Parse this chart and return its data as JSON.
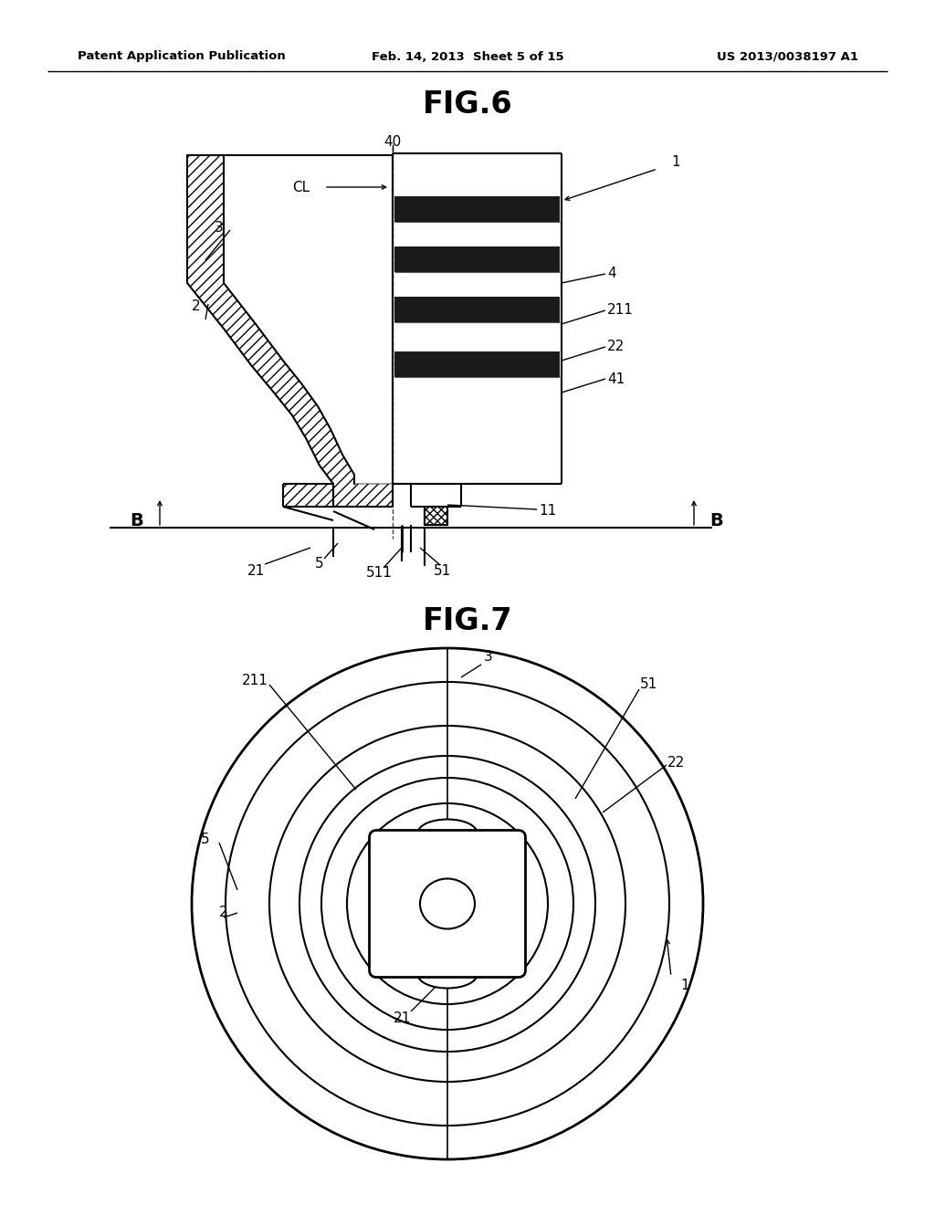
{
  "page_title_left": "Patent Application Publication",
  "page_title_mid": "Feb. 14, 2013  Sheet 5 of 15",
  "page_title_right": "US 2013/0038197 A1",
  "fig6_title": "FIG.6",
  "fig7_title": "FIG.7",
  "bg_color": "#ffffff",
  "line_color": "#000000"
}
